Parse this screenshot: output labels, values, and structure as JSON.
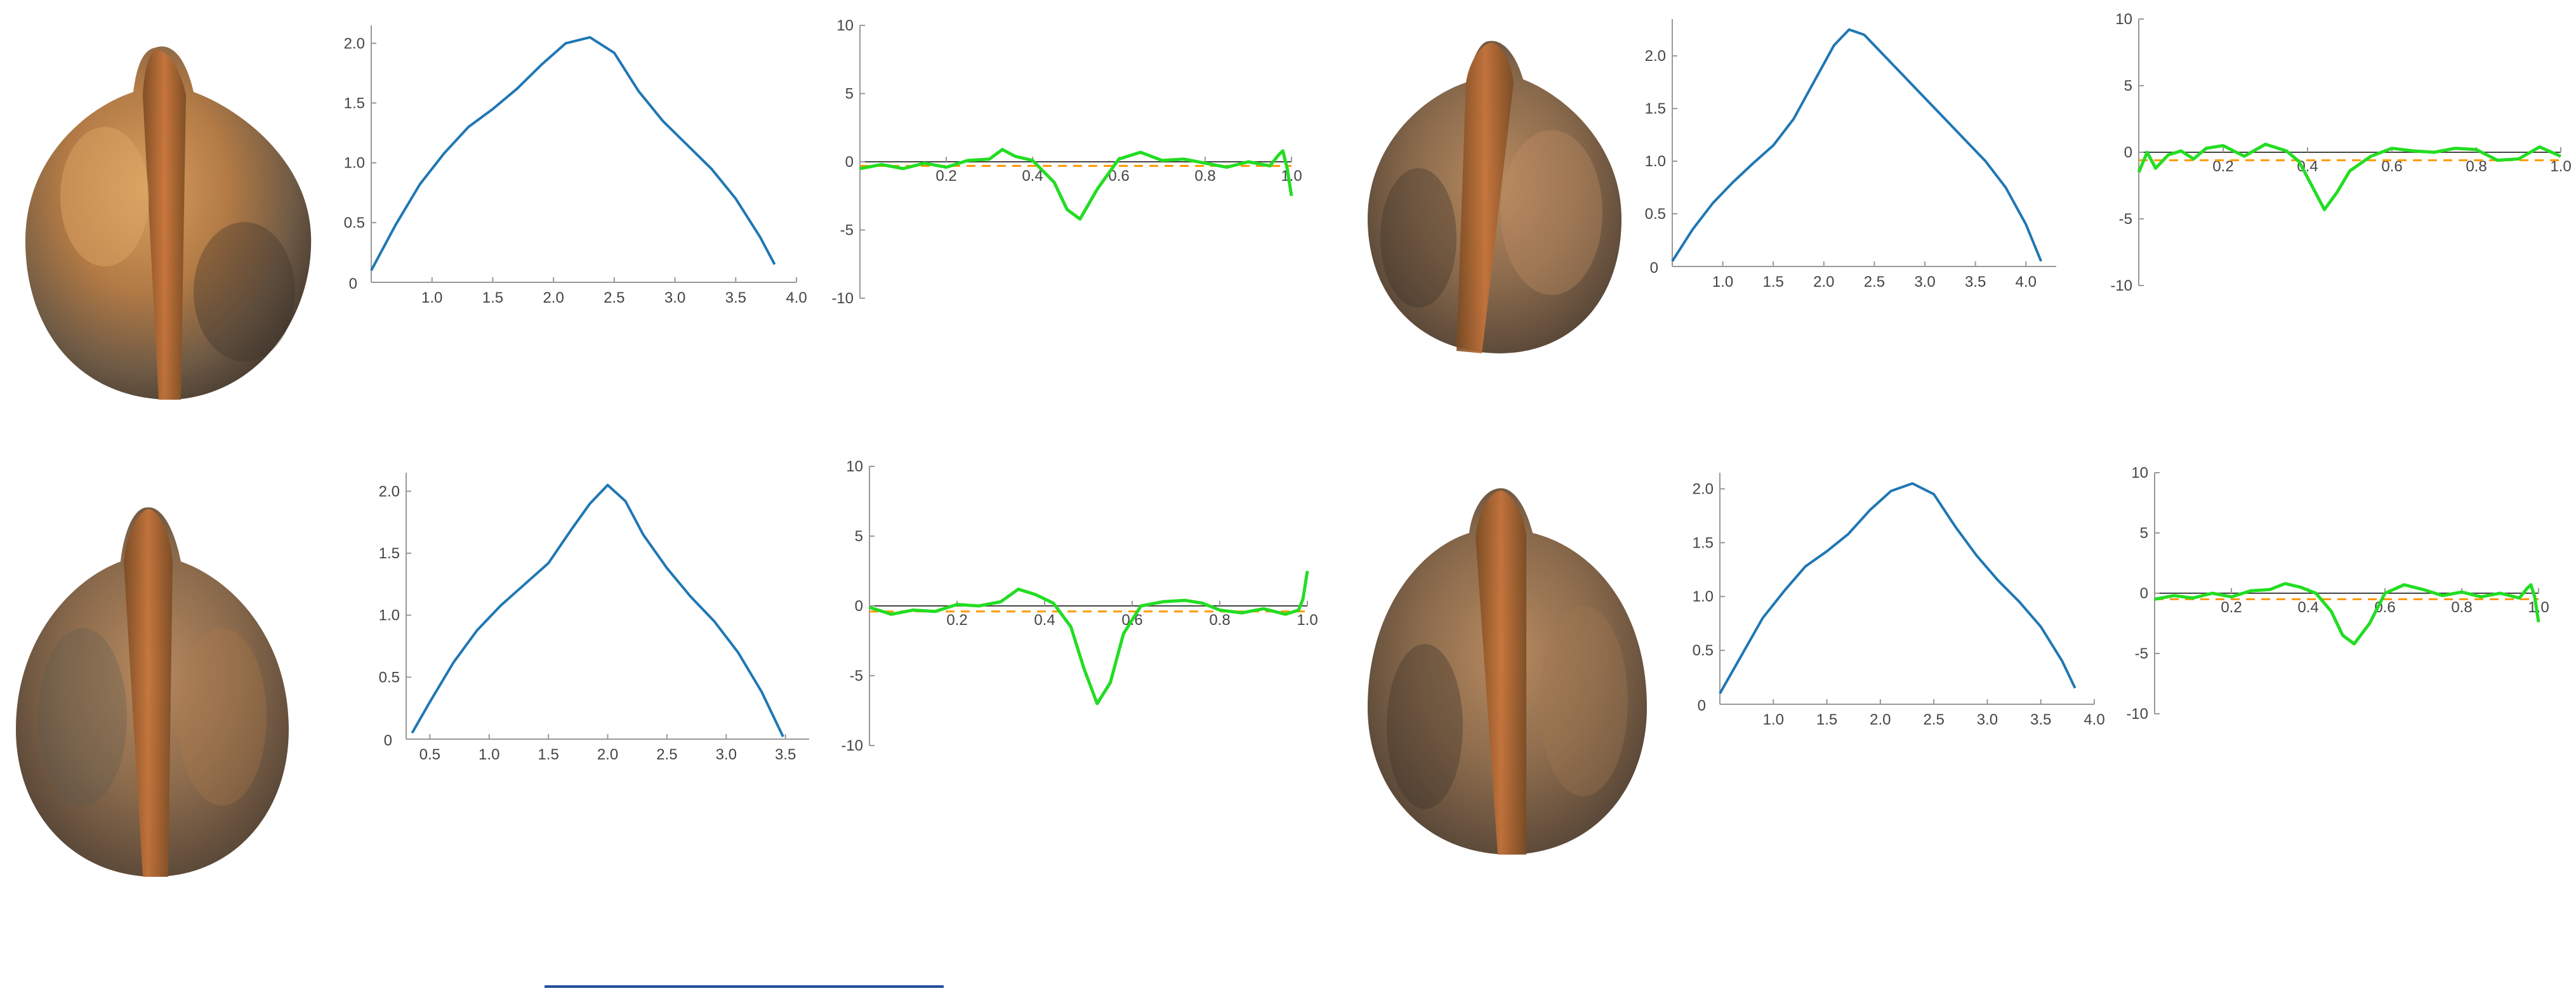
{
  "panels": [
    {
      "id": "top-left",
      "seed": {
        "name": "seed-top-left",
        "stripe_side": "center"
      },
      "profile": {
        "type": "line",
        "color": "#1f77b4",
        "xlim": [
          0.5,
          4.0
        ],
        "ylim": [
          0,
          2.15
        ],
        "x_ticks": [
          1.0,
          1.5,
          2.0,
          2.5,
          3.0,
          3.5,
          4.0
        ],
        "y_ticks": [
          0.5,
          1.0,
          1.5,
          2.0
        ],
        "x_tick_labels": [
          "1.0",
          "1.5",
          "2.0",
          "2.5",
          "3.0",
          "3.5",
          "4.0"
        ],
        "y_tick_labels": [
          "0.5",
          "1.0",
          "1.5",
          "2.0"
        ],
        "origin_label": "0",
        "x": [
          0.5,
          0.7,
          0.9,
          1.1,
          1.3,
          1.5,
          1.7,
          1.9,
          2.1,
          2.3,
          2.5,
          2.7,
          2.9,
          3.1,
          3.3,
          3.5,
          3.7,
          3.82
        ],
        "y": [
          0.1,
          0.48,
          0.82,
          1.08,
          1.3,
          1.45,
          1.62,
          1.82,
          2.0,
          2.05,
          1.92,
          1.6,
          1.35,
          1.15,
          0.95,
          0.7,
          0.38,
          0.15
        ]
      },
      "curvature": {
        "type": "line",
        "color": "#22dd22",
        "ref_color": "#ff9900",
        "xlim": [
          0,
          1.0
        ],
        "ylim": [
          -10,
          10
        ],
        "x_ticks": [
          0.2,
          0.4,
          0.6,
          0.8,
          1.0
        ],
        "y_ticks": [
          -10,
          -5,
          0,
          5,
          10
        ],
        "x_tick_labels": [
          "0.2",
          "0.4",
          "0.6",
          "0.8",
          "1.0"
        ],
        "y_tick_labels": [
          "-10",
          "-5",
          "0",
          "5",
          "10"
        ],
        "ref_value": -0.3,
        "x": [
          0,
          0.05,
          0.1,
          0.15,
          0.2,
          0.25,
          0.3,
          0.33,
          0.36,
          0.4,
          0.45,
          0.48,
          0.51,
          0.55,
          0.6,
          0.65,
          0.7,
          0.75,
          0.8,
          0.85,
          0.9,
          0.95,
          0.97,
          0.98,
          0.99,
          1.0
        ],
        "y": [
          -0.5,
          -0.2,
          -0.5,
          -0.1,
          -0.4,
          0.1,
          0.2,
          0.9,
          0.4,
          0.1,
          -1.5,
          -3.5,
          -4.2,
          -2.0,
          0.2,
          0.7,
          0.1,
          0.2,
          -0.1,
          -0.4,
          0.0,
          -0.3,
          0.5,
          0.8,
          -0.5,
          -2.5
        ]
      }
    },
    {
      "id": "top-right",
      "seed": {
        "name": "seed-top-right",
        "stripe_side": "left"
      },
      "profile": {
        "type": "line",
        "color": "#1f77b4",
        "xlim": [
          0.5,
          4.3
        ],
        "ylim": [
          0,
          2.35
        ],
        "x_ticks": [
          1.0,
          1.5,
          2.0,
          2.5,
          3.0,
          3.5,
          4.0
        ],
        "y_ticks": [
          0.5,
          1.0,
          1.5,
          2.0
        ],
        "x_tick_labels": [
          "1.0",
          "1.5",
          "2.0",
          "2.5",
          "3.0",
          "3.5",
          "4.0"
        ],
        "y_tick_labels": [
          "0.5",
          "1.0",
          "1.5",
          "2.0"
        ],
        "origin_label": "0",
        "x": [
          0.5,
          0.7,
          0.9,
          1.1,
          1.3,
          1.5,
          1.7,
          1.9,
          2.1,
          2.25,
          2.4,
          2.6,
          2.8,
          3.0,
          3.2,
          3.4,
          3.6,
          3.8,
          4.0,
          4.15
        ],
        "y": [
          0.05,
          0.35,
          0.6,
          0.8,
          0.98,
          1.15,
          1.4,
          1.75,
          2.1,
          2.25,
          2.2,
          2.0,
          1.8,
          1.6,
          1.4,
          1.2,
          1.0,
          0.75,
          0.4,
          0.05
        ]
      },
      "curvature": {
        "type": "line",
        "color": "#22dd22",
        "ref_color": "#ff9900",
        "xlim": [
          0,
          1.0
        ],
        "ylim": [
          -10,
          10
        ],
        "x_ticks": [
          0.2,
          0.4,
          0.6,
          0.8,
          1.0
        ],
        "y_ticks": [
          -10,
          -5,
          0,
          5,
          10
        ],
        "x_tick_labels": [
          "0.2",
          "0.4",
          "0.6",
          "0.8",
          "1.0"
        ],
        "y_tick_labels": [
          "-10",
          "-5",
          "0",
          "5",
          "10"
        ],
        "ref_value": -0.6,
        "x": [
          0,
          0.02,
          0.04,
          0.07,
          0.1,
          0.13,
          0.16,
          0.2,
          0.25,
          0.3,
          0.35,
          0.38,
          0.41,
          0.44,
          0.47,
          0.5,
          0.55,
          0.6,
          0.65,
          0.7,
          0.75,
          0.8,
          0.85,
          0.9,
          0.95,
          1.0
        ],
        "y": [
          -1.5,
          0.0,
          -1.2,
          -0.2,
          0.1,
          -0.5,
          0.3,
          0.5,
          -0.3,
          0.6,
          0.1,
          -0.7,
          -2.5,
          -4.3,
          -3.0,
          -1.4,
          -0.3,
          0.3,
          0.1,
          0.0,
          0.3,
          0.2,
          -0.6,
          -0.5,
          0.4,
          -0.3
        ]
      }
    },
    {
      "id": "bottom-left",
      "seed": {
        "name": "seed-bottom-left",
        "stripe_side": "center"
      },
      "profile": {
        "type": "line",
        "color": "#1f77b4",
        "xlim": [
          0.3,
          3.7
        ],
        "ylim": [
          0,
          2.15
        ],
        "x_ticks": [
          0.5,
          1.0,
          1.5,
          2.0,
          2.5,
          3.0,
          3.5
        ],
        "y_ticks": [
          0.5,
          1.0,
          1.5,
          2.0
        ],
        "x_tick_labels": [
          "0.5",
          "1.0",
          "1.5",
          "2.0",
          "2.5",
          "3.0",
          "3.5"
        ],
        "y_tick_labels": [
          "0.5",
          "1.0",
          "1.5",
          "2.0"
        ],
        "origin_label": "0",
        "x": [
          0.35,
          0.5,
          0.7,
          0.9,
          1.1,
          1.3,
          1.5,
          1.7,
          1.85,
          2.0,
          2.15,
          2.3,
          2.5,
          2.7,
          2.9,
          3.1,
          3.3,
          3.48
        ],
        "y": [
          0.05,
          0.3,
          0.62,
          0.88,
          1.08,
          1.25,
          1.42,
          1.7,
          1.9,
          2.05,
          1.92,
          1.65,
          1.38,
          1.15,
          0.95,
          0.7,
          0.38,
          0.02
        ]
      },
      "curvature": {
        "type": "line",
        "color": "#22dd22",
        "ref_color": "#ff9900",
        "xlim": [
          0,
          1.0
        ],
        "ylim": [
          -10,
          10
        ],
        "x_ticks": [
          0.2,
          0.4,
          0.6,
          0.8,
          1.0
        ],
        "y_ticks": [
          -10,
          -5,
          0,
          5,
          10
        ],
        "x_tick_labels": [
          "0.2",
          "0.4",
          "0.6",
          "0.8",
          "1.0"
        ],
        "y_tick_labels": [
          "-10",
          "-5",
          "0",
          "5",
          "10"
        ],
        "ref_value": -0.4,
        "x": [
          0,
          0.05,
          0.1,
          0.15,
          0.2,
          0.25,
          0.3,
          0.34,
          0.38,
          0.42,
          0.46,
          0.49,
          0.52,
          0.55,
          0.58,
          0.62,
          0.67,
          0.72,
          0.76,
          0.8,
          0.85,
          0.9,
          0.95,
          0.98,
          0.99,
          1.0
        ],
        "y": [
          -0.1,
          -0.6,
          -0.3,
          -0.4,
          0.1,
          0.0,
          0.3,
          1.2,
          0.8,
          0.2,
          -1.5,
          -4.5,
          -7.0,
          -5.5,
          -2.0,
          0.0,
          0.3,
          0.4,
          0.2,
          -0.3,
          -0.5,
          -0.2,
          -0.6,
          -0.3,
          0.5,
          2.5
        ]
      }
    },
    {
      "id": "bottom-right",
      "seed": {
        "name": "seed-bottom-right",
        "stripe_side": "center"
      },
      "profile": {
        "type": "line",
        "color": "#1f77b4",
        "xlim": [
          0.5,
          4.0
        ],
        "ylim": [
          0,
          2.15
        ],
        "x_ticks": [
          1.0,
          1.5,
          2.0,
          2.5,
          3.0,
          3.5,
          4.0
        ],
        "y_ticks": [
          0.5,
          1.0,
          1.5,
          2.0
        ],
        "x_tick_labels": [
          "1.0",
          "1.5",
          "2.0",
          "2.5",
          "3.0",
          "3.5",
          "4.0"
        ],
        "y_tick_labels": [
          "0.5",
          "1.0",
          "1.5",
          "2.0"
        ],
        "origin_label": "0",
        "x": [
          0.5,
          0.7,
          0.9,
          1.1,
          1.3,
          1.5,
          1.7,
          1.9,
          2.1,
          2.3,
          2.5,
          2.7,
          2.9,
          3.1,
          3.3,
          3.5,
          3.7,
          3.82
        ],
        "y": [
          0.1,
          0.45,
          0.8,
          1.05,
          1.28,
          1.42,
          1.58,
          1.8,
          1.98,
          2.05,
          1.95,
          1.65,
          1.38,
          1.15,
          0.95,
          0.72,
          0.4,
          0.15
        ]
      },
      "curvature": {
        "type": "line",
        "color": "#22dd22",
        "ref_color": "#ff9900",
        "xlim": [
          0,
          1.0
        ],
        "ylim": [
          -10,
          10
        ],
        "x_ticks": [
          0.2,
          0.4,
          0.6,
          0.8,
          1.0
        ],
        "y_ticks": [
          -10,
          -5,
          0,
          5,
          10
        ],
        "x_tick_labels": [
          "0.2",
          "0.4",
          "0.6",
          "0.8",
          "1.0"
        ],
        "y_tick_labels": [
          "-10",
          "-5",
          "0",
          "5",
          "10"
        ],
        "ref_value": -0.5,
        "x": [
          0,
          0.05,
          0.1,
          0.15,
          0.2,
          0.25,
          0.3,
          0.34,
          0.38,
          0.42,
          0.46,
          0.49,
          0.52,
          0.56,
          0.6,
          0.65,
          0.7,
          0.75,
          0.8,
          0.85,
          0.9,
          0.95,
          0.97,
          0.98,
          0.99,
          1.0
        ],
        "y": [
          -0.5,
          -0.2,
          -0.4,
          0.0,
          -0.3,
          0.2,
          0.3,
          0.8,
          0.5,
          0.0,
          -1.5,
          -3.5,
          -4.2,
          -2.5,
          0.0,
          0.7,
          0.3,
          -0.2,
          0.1,
          -0.3,
          0.0,
          -0.4,
          0.4,
          0.7,
          -0.3,
          -2.4
        ]
      }
    }
  ],
  "scale_bar": {
    "color": "#1f4e9a"
  },
  "colors": {
    "axis": "#999999",
    "seed_dark": "#4a3a2a",
    "seed_orange": "#c87a3a"
  }
}
